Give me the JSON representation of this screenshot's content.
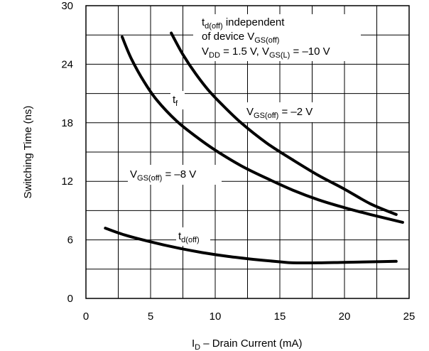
{
  "chart_data": {
    "type": "line",
    "title": "",
    "xlabel": {
      "main": "I",
      "sub": "D",
      "rest": " – Drain Current (mA)"
    },
    "ylabel": "Switching Time (ns)",
    "xlim": [
      0,
      25
    ],
    "ylim": [
      0,
      30
    ],
    "x_ticks": [
      0,
      5,
      10,
      15,
      20,
      25
    ],
    "y_ticks": [
      0,
      6,
      12,
      18,
      24,
      30
    ],
    "grid": true,
    "grid_x_step": 2.5,
    "grid_y_step": 3,
    "series": [
      {
        "x": [
          2.8,
          3.5,
          4.5,
          5.5,
          7,
          8.5,
          10,
          12,
          14,
          16,
          18,
          20,
          22,
          24.5
        ],
        "y": [
          26.8,
          24.6,
          22.2,
          20.3,
          18.2,
          16.6,
          15.2,
          13.6,
          12.3,
          11.1,
          10.1,
          9.3,
          8.6,
          7.8
        ]
      },
      {
        "x": [
          6.6,
          7.5,
          8.5,
          9.5,
          10.5,
          12,
          14,
          16,
          18,
          20,
          22,
          24
        ],
        "y": [
          27.2,
          25,
          23,
          21.3,
          19.9,
          18,
          15.9,
          14.2,
          12.6,
          11.2,
          9.7,
          8.6
        ]
      },
      {
        "x": [
          1.5,
          3,
          5,
          7,
          9,
          11,
          13,
          15,
          16,
          18,
          20,
          22,
          24
        ],
        "y": [
          7.2,
          6.5,
          5.8,
          5.2,
          4.7,
          4.3,
          4.0,
          3.75,
          3.65,
          3.65,
          3.7,
          3.75,
          3.8
        ]
      }
    ],
    "annotations": {
      "tf": {
        "main": "t",
        "sub": "f"
      },
      "td_off_curve": {
        "main": "t",
        "sub": "d(off)"
      },
      "vgs_m8": {
        "main": "V",
        "sub": "GS(off)",
        "rest": " = –8 V"
      },
      "vgs_m2": {
        "main": "V",
        "sub": "GS(off)",
        "rest": " = –2 V"
      },
      "note_line1": {
        "main": "t",
        "sub": "d(off)",
        "rest": " independent"
      },
      "note_line2": {
        "main": "of device V",
        "sub": "GS(off)"
      },
      "note_line3": {
        "a": "V",
        "a_sub": "DD",
        "b": " = 1.5 V, V",
        "b_sub": "GS(L)",
        "c": " = –10 V"
      }
    }
  }
}
